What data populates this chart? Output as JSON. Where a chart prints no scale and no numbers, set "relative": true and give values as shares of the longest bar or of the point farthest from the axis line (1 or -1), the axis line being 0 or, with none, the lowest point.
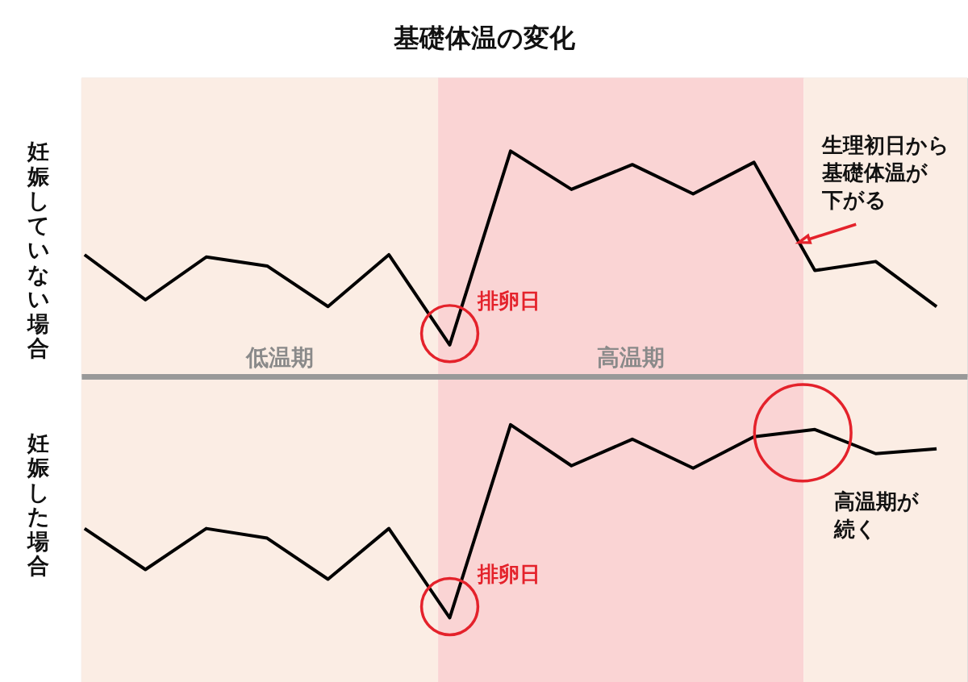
{
  "chart_data": [
    {
      "type": "line",
      "title": "基礎体温の変化",
      "ylabel": "妊娠していない場合",
      "relative": true,
      "categories": [
        null,
        null,
        null,
        null,
        null,
        null,
        null,
        null,
        null,
        null,
        null,
        null,
        null,
        null,
        null
      ],
      "series": [
        {
          "color": "#000000",
          "values": [
            0.54,
            0.34,
            0.53,
            0.49,
            0.31,
            0.54,
            0.14,
            1,
            0.83,
            0.94,
            0.81,
            0.95,
            0.47,
            0.51,
            0.31
          ]
        }
      ],
      "annotations": [
        "排卵日",
        "生理初日から基礎体温が下がる",
        "低温期",
        "高温期"
      ]
    },
    {
      "type": "line",
      "ylabel": "妊娠した場合",
      "relative": true,
      "categories": [
        null,
        null,
        null,
        null,
        null,
        null,
        null,
        null,
        null,
        null,
        null,
        null,
        null,
        null,
        null
      ],
      "series": [
        {
          "color": "#000000",
          "values": [
            -0.63,
            -0.8,
            -0.63,
            -0.67,
            -0.84,
            -0.63,
            -1,
            -0.2,
            -0.37,
            -0.26,
            -0.38,
            -0.25,
            -0.22,
            -0.32,
            -0.3
          ]
        }
      ],
      "annotations": [
        "排卵日",
        "高温期が続く"
      ]
    }
  ]
}
